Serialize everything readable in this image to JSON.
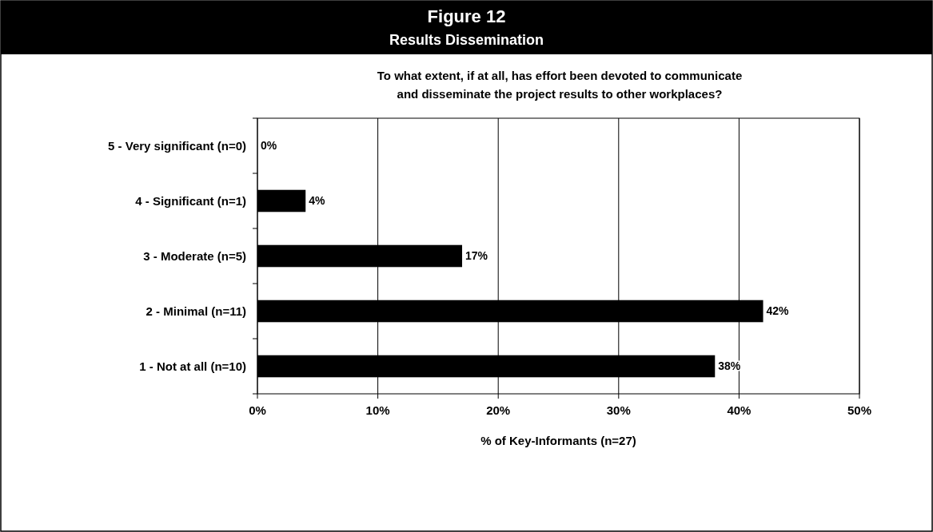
{
  "chart_data": {
    "type": "bar",
    "orientation": "horizontal",
    "title": "Figure 12",
    "subtitle": "Results Dissemination",
    "annotations": [
      "To what extent, if at all, has effort been devoted to communicate and disseminate the project results to other workplaces?"
    ],
    "categories": [
      "5 - Very significant (n=0)",
      "4 - Significant (n=1)",
      "3 - Moderate (n=5)",
      "2 - Minimal (n=11)",
      "1 - Not at all (n=10)"
    ],
    "values": [
      0,
      4,
      17,
      42,
      38
    ],
    "color": "#000000",
    "value_labels": [
      "0%",
      "4%",
      "17%",
      "42%",
      "38%"
    ],
    "xlim": [
      0,
      50
    ],
    "xticks": [
      {
        "value": 0,
        "label": "0%"
      },
      {
        "value": 10,
        "label": "10%"
      },
      {
        "value": 20,
        "label": "20%"
      },
      {
        "value": 30,
        "label": "30%"
      },
      {
        "value": 40,
        "label": "40%"
      },
      {
        "value": 50,
        "label": "50%"
      }
    ],
    "xlabel": "% of Key-Informants (n=27)",
    "grid": "x"
  }
}
